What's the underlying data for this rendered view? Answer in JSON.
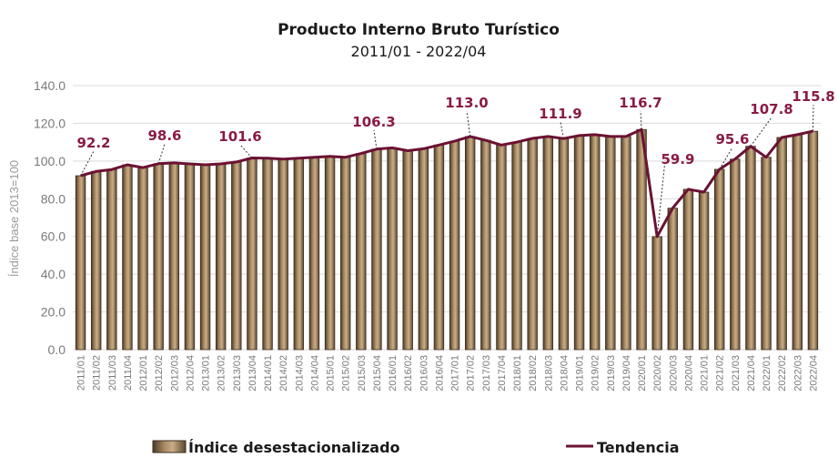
{
  "colors": {
    "bar": "#8c7351",
    "bar_edge": "#3d2f1f",
    "line": "#6b1233",
    "label": "#8a1b45",
    "grid": "#d9d9d9"
  },
  "chart_data": {
    "type": "bar",
    "title": "Producto Interno Bruto Turístico",
    "subtitle": "2011/01  -  2022/04",
    "ylabel": "Índice base 2013=100",
    "xlabel": "",
    "ylim": [
      0,
      140
    ],
    "yticks": [
      "0.0",
      "20.0",
      "40.0",
      "60.0",
      "80.0",
      "100.0",
      "120.0",
      "140.0"
    ],
    "grid": true,
    "legend_position": "bottom",
    "categories": [
      "2011/01",
      "2011/02",
      "2011/03",
      "2011/04",
      "2012/01",
      "2012/02",
      "2012/03",
      "2012/04",
      "2013/01",
      "2013/02",
      "2013/03",
      "2013/04",
      "2014/01",
      "2014/02",
      "2014/03",
      "2014/04",
      "2015/01",
      "2015/02",
      "2015/03",
      "2015/04",
      "2016/01",
      "2016/02",
      "2016/03",
      "2016/04",
      "2017/01",
      "2017/02",
      "2017/03",
      "2017/04",
      "2018/01",
      "2018/02",
      "2018/03",
      "2018/04",
      "2019/01",
      "2019/02",
      "2019/03",
      "2019/04",
      "2020/01",
      "2020/02",
      "2020/03",
      "2020/04",
      "2021/01",
      "2021/02",
      "2021/03",
      "2021/04",
      "2022/01",
      "2022/02",
      "2022/03",
      "2022/04"
    ],
    "series": [
      {
        "name": "Índice desestacionalizado",
        "kind": "bar",
        "values": [
          92.2,
          94.5,
          95.5,
          98.0,
          96.5,
          98.6,
          99.0,
          98.5,
          98.0,
          98.5,
          99.5,
          101.6,
          101.5,
          101.0,
          101.5,
          102.0,
          102.5,
          102.0,
          104.0,
          106.3,
          107.0,
          105.5,
          106.5,
          108.5,
          110.5,
          113.0,
          111.0,
          108.5,
          110.0,
          112.0,
          113.0,
          111.9,
          113.5,
          114.0,
          113.0,
          113.0,
          116.7,
          59.9,
          75.0,
          85.0,
          83.5,
          95.6,
          101.0,
          107.8,
          102.0,
          112.5,
          114.0,
          115.8
        ]
      },
      {
        "name": "Tendencia",
        "kind": "line",
        "values": [
          92.2,
          94.5,
          95.5,
          98.0,
          96.5,
          98.6,
          99.0,
          98.5,
          98.0,
          98.5,
          99.5,
          101.6,
          101.5,
          101.0,
          101.5,
          102.0,
          102.5,
          102.0,
          104.0,
          106.3,
          107.0,
          105.5,
          106.5,
          108.5,
          110.5,
          113.0,
          111.0,
          108.5,
          110.0,
          112.0,
          113.0,
          111.9,
          113.5,
          114.0,
          113.0,
          113.0,
          116.7,
          59.9,
          75.0,
          85.0,
          83.5,
          95.6,
          101.0,
          107.8,
          102.0,
          112.5,
          114.0,
          115.8
        ]
      }
    ],
    "annotations": [
      {
        "index": 0,
        "text": "92.2"
      },
      {
        "index": 5,
        "text": "98.6"
      },
      {
        "index": 11,
        "text": "101.6"
      },
      {
        "index": 19,
        "text": "106.3"
      },
      {
        "index": 25,
        "text": "113.0"
      },
      {
        "index": 31,
        "text": "111.9"
      },
      {
        "index": 36,
        "text": "116.7"
      },
      {
        "index": 37,
        "text": "59.9"
      },
      {
        "index": 41,
        "text": "95.6"
      },
      {
        "index": 43,
        "text": "107.8"
      },
      {
        "index": 47,
        "text": "115.8"
      }
    ]
  }
}
